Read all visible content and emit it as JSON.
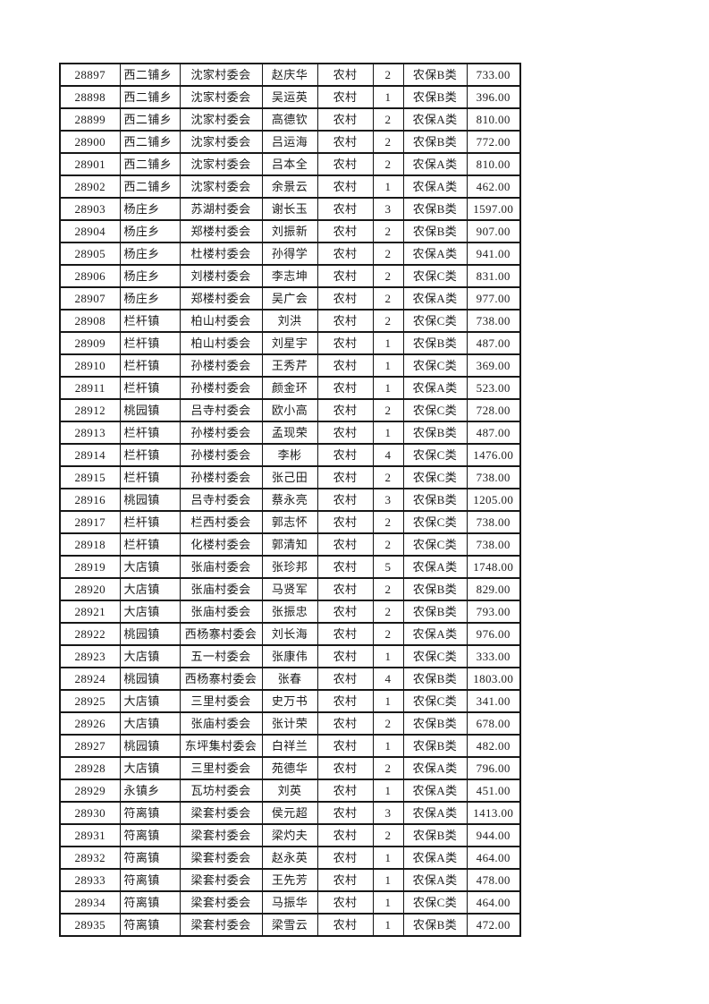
{
  "colors": {
    "background": "#ffffff",
    "grid_border": "#171717",
    "text": "#1c1c1c"
  },
  "table": {
    "rows": [
      [
        "28897",
        "西二铺乡",
        "沈家村委会",
        "赵庆华",
        "农村",
        "2",
        "农保B类",
        "733.00"
      ],
      [
        "28898",
        "西二铺乡",
        "沈家村委会",
        "吴运英",
        "农村",
        "1",
        "农保B类",
        "396.00"
      ],
      [
        "28899",
        "西二铺乡",
        "沈家村委会",
        "高德钦",
        "农村",
        "2",
        "农保A类",
        "810.00"
      ],
      [
        "28900",
        "西二铺乡",
        "沈家村委会",
        "吕运海",
        "农村",
        "2",
        "农保B类",
        "772.00"
      ],
      [
        "28901",
        "西二铺乡",
        "沈家村委会",
        "吕本全",
        "农村",
        "2",
        "农保A类",
        "810.00"
      ],
      [
        "28902",
        "西二铺乡",
        "沈家村委会",
        "余景云",
        "农村",
        "1",
        "农保A类",
        "462.00"
      ],
      [
        "28903",
        "杨庄乡",
        "苏湖村委会",
        "谢长玉",
        "农村",
        "3",
        "农保B类",
        "1597.00"
      ],
      [
        "28904",
        "杨庄乡",
        "郑楼村委会",
        "刘振新",
        "农村",
        "2",
        "农保B类",
        "907.00"
      ],
      [
        "28905",
        "杨庄乡",
        "杜楼村委会",
        "孙得学",
        "农村",
        "2",
        "农保A类",
        "941.00"
      ],
      [
        "28906",
        "杨庄乡",
        "刘楼村委会",
        "李志坤",
        "农村",
        "2",
        "农保C类",
        "831.00"
      ],
      [
        "28907",
        "杨庄乡",
        "郑楼村委会",
        "吴广会",
        "农村",
        "2",
        "农保A类",
        "977.00"
      ],
      [
        "28908",
        "栏杆镇",
        "柏山村委会",
        "刘洪",
        "农村",
        "2",
        "农保C类",
        "738.00"
      ],
      [
        "28909",
        "栏杆镇",
        "柏山村委会",
        "刘星宇",
        "农村",
        "1",
        "农保B类",
        "487.00"
      ],
      [
        "28910",
        "栏杆镇",
        "孙楼村委会",
        "王秀芹",
        "农村",
        "1",
        "农保C类",
        "369.00"
      ],
      [
        "28911",
        "栏杆镇",
        "孙楼村委会",
        "颜金环",
        "农村",
        "1",
        "农保A类",
        "523.00"
      ],
      [
        "28912",
        "桃园镇",
        "吕寺村委会",
        "欧小高",
        "农村",
        "2",
        "农保C类",
        "728.00"
      ],
      [
        "28913",
        "栏杆镇",
        "孙楼村委会",
        "孟现荣",
        "农村",
        "1",
        "农保B类",
        "487.00"
      ],
      [
        "28914",
        "栏杆镇",
        "孙楼村委会",
        "李彬",
        "农村",
        "4",
        "农保C类",
        "1476.00"
      ],
      [
        "28915",
        "栏杆镇",
        "孙楼村委会",
        "张己田",
        "农村",
        "2",
        "农保C类",
        "738.00"
      ],
      [
        "28916",
        "桃园镇",
        "吕寺村委会",
        "蔡永亮",
        "农村",
        "3",
        "农保B类",
        "1205.00"
      ],
      [
        "28917",
        "栏杆镇",
        "栏西村委会",
        "郭志怀",
        "农村",
        "2",
        "农保C类",
        "738.00"
      ],
      [
        "28918",
        "栏杆镇",
        "化楼村委会",
        "郭清知",
        "农村",
        "2",
        "农保C类",
        "738.00"
      ],
      [
        "28919",
        "大店镇",
        "张庙村委会",
        "张珍邦",
        "农村",
        "5",
        "农保A类",
        "1748.00"
      ],
      [
        "28920",
        "大店镇",
        "张庙村委会",
        "马贤军",
        "农村",
        "2",
        "农保B类",
        "829.00"
      ],
      [
        "28921",
        "大店镇",
        "张庙村委会",
        "张振忠",
        "农村",
        "2",
        "农保B类",
        "793.00"
      ],
      [
        "28922",
        "桃园镇",
        "西杨寨村委会",
        "刘长海",
        "农村",
        "2",
        "农保A类",
        "976.00"
      ],
      [
        "28923",
        "大店镇",
        "五一村委会",
        "张康伟",
        "农村",
        "1",
        "农保C类",
        "333.00"
      ],
      [
        "28924",
        "桃园镇",
        "西杨寨村委会",
        "张春",
        "农村",
        "4",
        "农保B类",
        "1803.00"
      ],
      [
        "28925",
        "大店镇",
        "三里村委会",
        "史万书",
        "农村",
        "1",
        "农保C类",
        "341.00"
      ],
      [
        "28926",
        "大店镇",
        "张庙村委会",
        "张计荣",
        "农村",
        "2",
        "农保B类",
        "678.00"
      ],
      [
        "28927",
        "桃园镇",
        "东坪集村委会",
        "白祥兰",
        "农村",
        "1",
        "农保B类",
        "482.00"
      ],
      [
        "28928",
        "大店镇",
        "三里村委会",
        "苑德华",
        "农村",
        "2",
        "农保A类",
        "796.00"
      ],
      [
        "28929",
        "永镇乡",
        "瓦坊村委会",
        "刘英",
        "农村",
        "1",
        "农保A类",
        "451.00"
      ],
      [
        "28930",
        "符离镇",
        "梁套村委会",
        "侯元超",
        "农村",
        "3",
        "农保A类",
        "1413.00"
      ],
      [
        "28931",
        "符离镇",
        "梁套村委会",
        "梁灼夫",
        "农村",
        "2",
        "农保B类",
        "944.00"
      ],
      [
        "28932",
        "符离镇",
        "梁套村委会",
        "赵永英",
        "农村",
        "1",
        "农保A类",
        "464.00"
      ],
      [
        "28933",
        "符离镇",
        "梁套村委会",
        "王先芳",
        "农村",
        "1",
        "农保A类",
        "478.00"
      ],
      [
        "28934",
        "符离镇",
        "梁套村委会",
        "马振华",
        "农村",
        "1",
        "农保C类",
        "464.00"
      ],
      [
        "28935",
        "符离镇",
        "梁套村委会",
        "梁雪云",
        "农村",
        "1",
        "农保B类",
        "472.00"
      ]
    ]
  }
}
